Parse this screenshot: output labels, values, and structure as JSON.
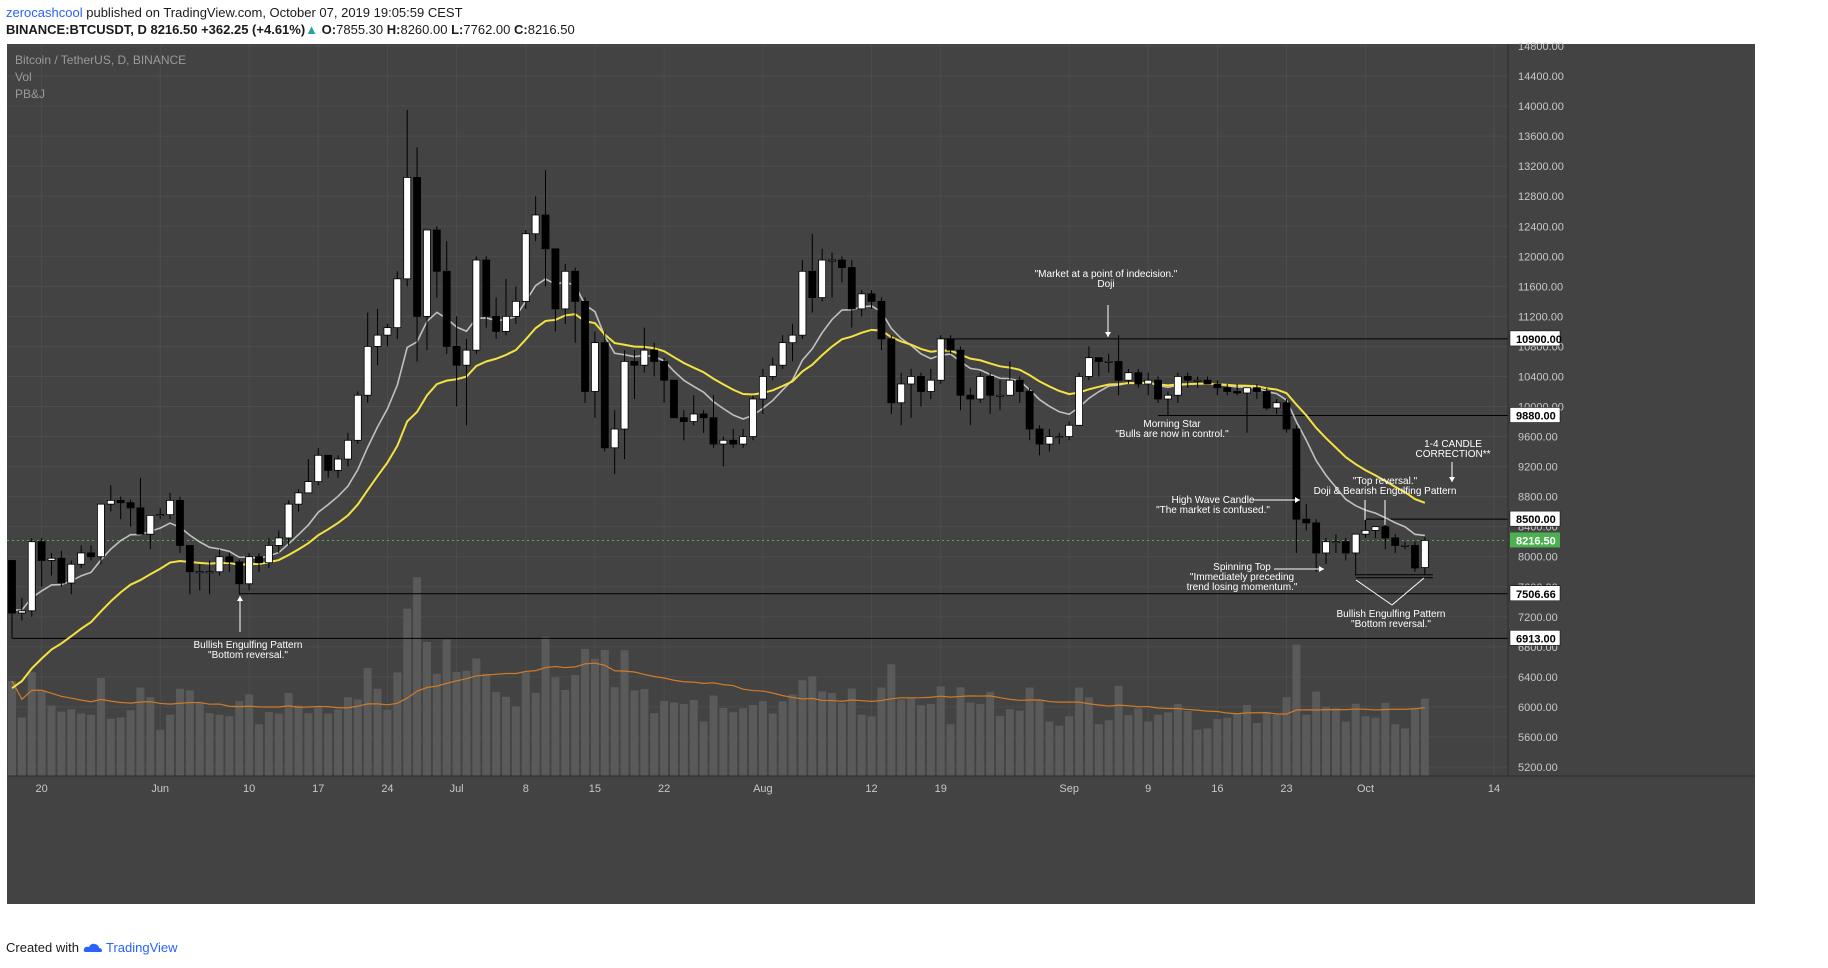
{
  "header": {
    "author": "zerocashcool",
    "published_text": "published on TradingView.com, October 07, 2019 19:05:59 CEST",
    "symbol": "BINANCE:BTCUSDT, D",
    "last": "8216.50",
    "change": "+362.25 (+4.61%)",
    "open": "7855.30",
    "high": "8260.00",
    "low": "7762.00",
    "close": "8216.50",
    "o_label": "O:",
    "h_label": "H:",
    "l_label": "L:",
    "c_label": "C:"
  },
  "footer": {
    "created_with": "Created with",
    "brand": "TradingView"
  },
  "colors": {
    "background": "#434343",
    "grid": "#4d4d4d",
    "candle_up": "#ffffff",
    "candle_down": "#000000",
    "ema_fast": "#c0c0c0",
    "ema_slow": "#f4e242",
    "volume": "#5a5a5a",
    "volume_ma": "#d17a2b",
    "last_price": "#4caf50"
  },
  "chart_data": {
    "type": "candlestick",
    "title": "Bitcoin / TetherUS, D, BINANCE",
    "indicators": [
      "Vol",
      "PB&J"
    ],
    "grid": true,
    "ylim": [
      5200,
      14800
    ],
    "y_ticks": [
      "14800.00",
      "14400.00",
      "14000.00",
      "13600.00",
      "13200.00",
      "12800.00",
      "12400.00",
      "12000.00",
      "11600.00",
      "11200.00",
      "10800.00",
      "10400.00",
      "10000.00",
      "9600.00",
      "9200.00",
      "8800.00",
      "8400.00",
      "8000.00",
      "7600.00",
      "7200.00",
      "6800.00",
      "6400.00",
      "6000.00",
      "5600.00",
      "5200.00"
    ],
    "x_ticks": [
      {
        "label": "20",
        "date": "2019-05-20"
      },
      {
        "label": "Jun",
        "date": "2019-06-01"
      },
      {
        "label": "10",
        "date": "2019-06-10"
      },
      {
        "label": "17",
        "date": "2019-06-17"
      },
      {
        "label": "24",
        "date": "2019-06-24"
      },
      {
        "label": "Jul",
        "date": "2019-07-01"
      },
      {
        "label": "8",
        "date": "2019-07-08"
      },
      {
        "label": "15",
        "date": "2019-07-15"
      },
      {
        "label": "22",
        "date": "2019-07-22"
      },
      {
        "label": "Aug",
        "date": "2019-08-01"
      },
      {
        "label": "12",
        "date": "2019-08-12"
      },
      {
        "label": "19",
        "date": "2019-08-19"
      },
      {
        "label": "Sep",
        "date": "2019-09-01"
      },
      {
        "label": "9",
        "date": "2019-09-09"
      },
      {
        "label": "16",
        "date": "2019-09-16"
      },
      {
        "label": "23",
        "date": "2019-09-23"
      },
      {
        "label": "Oct",
        "date": "2019-10-01"
      },
      {
        "label": "14",
        "date": "2019-10-14"
      }
    ],
    "first_date": "2019-05-17",
    "price_labels": [
      {
        "value": 10900,
        "text": "10900.00"
      },
      {
        "value": 9880,
        "text": "9880.00"
      },
      {
        "value": 8500,
        "text": "8500.00"
      },
      {
        "value": 7506.66,
        "text": "7506.66"
      },
      {
        "value": 6913,
        "text": "6913.00"
      }
    ],
    "last_price": {
      "value": 8216.5,
      "text": "8216.50"
    },
    "horizontal_lines": [
      {
        "value": 10900,
        "from": "2019-08-19"
      },
      {
        "value": 9880,
        "from": "2019-09-10"
      },
      {
        "value": 8500,
        "from": "2019-10-01"
      },
      {
        "value": 7506.66,
        "from": "2019-06-09"
      },
      {
        "value": 6913,
        "from": "2019-05-17"
      },
      {
        "value": 7760,
        "from": "2019-09-30",
        "to": "2019-10-07"
      },
      {
        "value": 7720,
        "from": "2019-09-30",
        "to": "2019-10-07"
      }
    ],
    "candles": [
      [
        "2019-05-17",
        7950,
        7950,
        6913,
        7250
      ],
      [
        "2019-05-18",
        7250,
        7450,
        7150,
        7280
      ],
      [
        "2019-05-19",
        7280,
        8250,
        7200,
        8200
      ],
      [
        "2019-05-20",
        8200,
        8250,
        7600,
        7950
      ],
      [
        "2019-05-21",
        7950,
        8050,
        7750,
        7980
      ],
      [
        "2019-05-22",
        7980,
        8080,
        7600,
        7650
      ],
      [
        "2019-05-23",
        7650,
        7950,
        7500,
        7900
      ],
      [
        "2019-05-24",
        7900,
        8150,
        7850,
        8050
      ],
      [
        "2019-05-25",
        8050,
        8150,
        7950,
        8000
      ],
      [
        "2019-05-26",
        8000,
        8700,
        7900,
        8700
      ],
      [
        "2019-05-27",
        8700,
        8950,
        8600,
        8750
      ],
      [
        "2019-05-28",
        8750,
        8800,
        8500,
        8720
      ],
      [
        "2019-05-29",
        8720,
        8760,
        8400,
        8650
      ],
      [
        "2019-05-30",
        8650,
        9050,
        8350,
        8300
      ],
      [
        "2019-05-31",
        8300,
        8550,
        8100,
        8550
      ],
      [
        "2019-06-01",
        8550,
        8650,
        8500,
        8560
      ],
      [
        "2019-06-02",
        8560,
        8850,
        8500,
        8750
      ],
      [
        "2019-06-03",
        8750,
        8800,
        8050,
        8150
      ],
      [
        "2019-06-04",
        8150,
        8150,
        7500,
        7800
      ],
      [
        "2019-06-05",
        7800,
        7900,
        7550,
        7800
      ],
      [
        "2019-06-06",
        7800,
        7950,
        7500,
        7800
      ],
      [
        "2019-06-07",
        7800,
        8100,
        7750,
        8000
      ],
      [
        "2019-06-08",
        8000,
        8050,
        7800,
        7930
      ],
      [
        "2019-06-09",
        7930,
        7960,
        7506.66,
        7640
      ],
      [
        "2019-06-10",
        7640,
        8050,
        7550,
        8000
      ],
      [
        "2019-06-11",
        8000,
        8050,
        7800,
        7920
      ],
      [
        "2019-06-12",
        7920,
        8250,
        7850,
        8150
      ],
      [
        "2019-06-13",
        8150,
        8350,
        8050,
        8250
      ],
      [
        "2019-06-14",
        8250,
        8750,
        8150,
        8700
      ],
      [
        "2019-06-15",
        8700,
        8900,
        8600,
        8850
      ],
      [
        "2019-06-16",
        8850,
        9300,
        8850,
        9000
      ],
      [
        "2019-06-17",
        9000,
        9450,
        8950,
        9350
      ],
      [
        "2019-06-18",
        9350,
        9350,
        9050,
        9150
      ],
      [
        "2019-06-19",
        9150,
        9350,
        9050,
        9300
      ],
      [
        "2019-06-20",
        9300,
        9650,
        9200,
        9550
      ],
      [
        "2019-06-21",
        9550,
        10200,
        9500,
        10150
      ],
      [
        "2019-06-22",
        10150,
        11250,
        10050,
        10800
      ],
      [
        "2019-06-23",
        10800,
        11300,
        10550,
        10950
      ],
      [
        "2019-06-24",
        10950,
        11100,
        10800,
        11050
      ],
      [
        "2019-06-25",
        11050,
        11800,
        10900,
        11700
      ],
      [
        "2019-06-26",
        11700,
        13950,
        11600,
        13050
      ],
      [
        "2019-06-27",
        13050,
        13450,
        10600,
        11200
      ],
      [
        "2019-06-28",
        11200,
        12350,
        10750,
        12350
      ],
      [
        "2019-06-29",
        12350,
        12400,
        11450,
        11800
      ],
      [
        "2019-06-30",
        11800,
        12200,
        10700,
        10800
      ],
      [
        "2019-07-01",
        10800,
        11200,
        10000,
        10550
      ],
      [
        "2019-07-02",
        10550,
        10900,
        9750,
        10750
      ],
      [
        "2019-07-03",
        10750,
        12000,
        10700,
        11950
      ],
      [
        "2019-07-04",
        11950,
        12000,
        11050,
        11200
      ],
      [
        "2019-07-05",
        11200,
        11450,
        10900,
        11000
      ],
      [
        "2019-07-06",
        11000,
        11700,
        10950,
        11200
      ],
      [
        "2019-07-07",
        11200,
        11600,
        11100,
        11400
      ],
      [
        "2019-07-08",
        11400,
        12350,
        11300,
        12300
      ],
      [
        "2019-07-09",
        12300,
        12800,
        12200,
        12550
      ],
      [
        "2019-07-10",
        12550,
        13150,
        11600,
        12100
      ],
      [
        "2019-07-11",
        12100,
        12100,
        11000,
        11300
      ],
      [
        "2019-07-12",
        11300,
        11900,
        11100,
        11800
      ],
      [
        "2019-07-13",
        11800,
        11850,
        10850,
        11400
      ],
      [
        "2019-07-14",
        11400,
        11450,
        10050,
        10200
      ],
      [
        "2019-07-15",
        10200,
        11000,
        9850,
        10850
      ],
      [
        "2019-07-16",
        10850,
        11000,
        9400,
        9450
      ],
      [
        "2019-07-17",
        9450,
        9950,
        9100,
        9700
      ],
      [
        "2019-07-18",
        9700,
        10750,
        9300,
        10600
      ],
      [
        "2019-07-19",
        10600,
        10750,
        10100,
        10550
      ],
      [
        "2019-07-20",
        10550,
        11050,
        10450,
        10750
      ],
      [
        "2019-07-21",
        10750,
        10850,
        10400,
        10600
      ],
      [
        "2019-07-22",
        10600,
        10650,
        10050,
        10350
      ],
      [
        "2019-07-23",
        10350,
        10350,
        9850,
        9850
      ],
      [
        "2019-07-24",
        9850,
        9950,
        9550,
        9800
      ],
      [
        "2019-07-25",
        9800,
        10150,
        9750,
        9900
      ],
      [
        "2019-07-26",
        9900,
        9950,
        9650,
        9850
      ],
      [
        "2019-07-27",
        9850,
        10150,
        9450,
        9500
      ],
      [
        "2019-07-28",
        9500,
        9600,
        9200,
        9550
      ],
      [
        "2019-07-29",
        9550,
        9700,
        9450,
        9500
      ],
      [
        "2019-07-30",
        9500,
        9700,
        9450,
        9600
      ],
      [
        "2019-07-31",
        9600,
        10150,
        9550,
        10100
      ],
      [
        "2019-08-01",
        10100,
        10500,
        9900,
        10400
      ],
      [
        "2019-08-02",
        10400,
        10650,
        10350,
        10550
      ],
      [
        "2019-08-03",
        10550,
        10950,
        10500,
        10850
      ],
      [
        "2019-08-04",
        10850,
        11100,
        10600,
        10950
      ],
      [
        "2019-08-05",
        10950,
        11950,
        10900,
        11800
      ],
      [
        "2019-08-06",
        11800,
        12300,
        11250,
        11450
      ],
      [
        "2019-08-07",
        11450,
        12100,
        11400,
        11950
      ],
      [
        "2019-08-08",
        11950,
        12050,
        11450,
        11950
      ],
      [
        "2019-08-09",
        11950,
        12000,
        11650,
        11850
      ],
      [
        "2019-08-10",
        11850,
        11950,
        11050,
        11300
      ],
      [
        "2019-08-11",
        11300,
        11550,
        11200,
        11500
      ],
      [
        "2019-08-12",
        11500,
        11550,
        11300,
        11400
      ],
      [
        "2019-08-13",
        11400,
        11450,
        10750,
        10900
      ],
      [
        "2019-08-14",
        10900,
        10950,
        9900,
        10050
      ],
      [
        "2019-08-15",
        10050,
        10450,
        9750,
        10300
      ],
      [
        "2019-08-16",
        10300,
        10500,
        9850,
        10400
      ],
      [
        "2019-08-17",
        10400,
        10450,
        10000,
        10200
      ],
      [
        "2019-08-18",
        10200,
        10500,
        10100,
        10350
      ],
      [
        "2019-08-19",
        10350,
        10950,
        10300,
        10900
      ],
      [
        "2019-08-20",
        10900,
        10950,
        10700,
        10750
      ],
      [
        "2019-08-21",
        10750,
        10800,
        9950,
        10150
      ],
      [
        "2019-08-22",
        10150,
        10250,
        9750,
        10100
      ],
      [
        "2019-08-23",
        10100,
        10450,
        10050,
        10400
      ],
      [
        "2019-08-24",
        10400,
        10450,
        9900,
        10150
      ],
      [
        "2019-08-25",
        10150,
        10350,
        9950,
        10150
      ],
      [
        "2019-08-26",
        10150,
        10600,
        10150,
        10350
      ],
      [
        "2019-08-27",
        10350,
        10400,
        10050,
        10200
      ],
      [
        "2019-08-28",
        10200,
        10250,
        9550,
        9700
      ],
      [
        "2019-08-29",
        9700,
        9750,
        9350,
        9500
      ],
      [
        "2019-08-30",
        9500,
        9700,
        9400,
        9600
      ],
      [
        "2019-08-31",
        9600,
        9650,
        9500,
        9600
      ],
      [
        "2019-09-01",
        9600,
        9800,
        9550,
        9750
      ],
      [
        "2019-09-02",
        9750,
        10450,
        9750,
        10400
      ],
      [
        "2019-09-03",
        10400,
        10800,
        10350,
        10650
      ],
      [
        "2019-09-04",
        10650,
        10650,
        10400,
        10600
      ],
      [
        "2019-09-05",
        10600,
        10700,
        10450,
        10600
      ],
      [
        "2019-09-06",
        10600,
        10950,
        10150,
        10350
      ],
      [
        "2019-09-07",
        10350,
        10500,
        10300,
        10450
      ],
      [
        "2019-09-08",
        10450,
        10500,
        10250,
        10300
      ],
      [
        "2019-09-09",
        10300,
        10450,
        10150,
        10350
      ],
      [
        "2019-09-10",
        10350,
        10400,
        10050,
        10100
      ],
      [
        "2019-09-11",
        10100,
        10200,
        9880,
        10150
      ],
      [
        "2019-09-12",
        10150,
        10450,
        10050,
        10400
      ],
      [
        "2019-09-13",
        10400,
        10450,
        10250,
        10350
      ],
      [
        "2019-09-14",
        10350,
        10400,
        10250,
        10350
      ],
      [
        "2019-09-15",
        10350,
        10400,
        10300,
        10300
      ],
      [
        "2019-09-16",
        10300,
        10350,
        10150,
        10250
      ],
      [
        "2019-09-17",
        10250,
        10300,
        10150,
        10200
      ],
      [
        "2019-09-18",
        10200,
        10300,
        10150,
        10180
      ],
      [
        "2019-09-19",
        10180,
        10250,
        9650,
        10250
      ],
      [
        "2019-09-20",
        10250,
        10300,
        10100,
        10200
      ],
      [
        "2019-09-21",
        10200,
        10250,
        9950,
        9980
      ],
      [
        "2019-09-22",
        9980,
        10100,
        9900,
        10050
      ],
      [
        "2019-09-23",
        10050,
        10100,
        9650,
        9700
      ],
      [
        "2019-09-24",
        9700,
        9750,
        8050,
        8500
      ],
      [
        "2019-09-25",
        8500,
        8700,
        8350,
        8450
      ],
      [
        "2019-09-26",
        8450,
        8500,
        7800,
        8050
      ],
      [
        "2019-09-27",
        8050,
        8250,
        7900,
        8200
      ],
      [
        "2019-09-28",
        8200,
        8300,
        8050,
        8200
      ],
      [
        "2019-09-29",
        8200,
        8250,
        7950,
        8050
      ],
      [
        "2019-09-30",
        8050,
        8300,
        7750,
        8300
      ],
      [
        "2019-10-01",
        8300,
        8500,
        8250,
        8350
      ],
      [
        "2019-10-02",
        8350,
        8400,
        8250,
        8400
      ],
      [
        "2019-10-03",
        8400,
        8450,
        8100,
        8250
      ],
      [
        "2019-10-04",
        8250,
        8300,
        8050,
        8150
      ],
      [
        "2019-10-05",
        8150,
        8200,
        8100,
        8150
      ],
      [
        "2019-10-06",
        8150,
        8200,
        7800,
        7850
      ],
      [
        "2019-10-07",
        7855.3,
        8260,
        7762,
        8216.5
      ]
    ]
  },
  "annotations": [
    {
      "id": "bullish-engulfing-1",
      "lines": [
        "Bullish Engulfing Pattern",
        "\"Bottom reversal.\""
      ],
      "date": "2019-06-09"
    },
    {
      "id": "doji",
      "lines": [
        "\"Market at a point of indecision.\"",
        "Doji"
      ],
      "date": "2019-09-05"
    },
    {
      "id": "morning-star",
      "lines": [
        "Morning Star",
        "\"Bulls are now in control.\""
      ],
      "date": "2019-09-12"
    },
    {
      "id": "high-wave",
      "lines": [
        "High Wave Candle",
        "\"The market is confused.\""
      ],
      "date": "2019-09-24"
    },
    {
      "id": "spinning-top",
      "lines": [
        "Spinning Top",
        "\"Immediately preceding",
        "trend losing momentum.\""
      ],
      "date": "2019-09-26"
    },
    {
      "id": "doji-bearish",
      "lines": [
        "\"Top reversal.\"",
        "Doji & Bearish Engulfing Pattern"
      ],
      "date": "2019-10-02"
    },
    {
      "id": "bullish-engulfing-2",
      "lines": [
        "Bullish Engulfing Pattern",
        "\"Bottom reversal.\""
      ],
      "date": "2019-10-06"
    },
    {
      "id": "correction",
      "lines": [
        "1-4 CANDLE",
        "CORRECTION**"
      ],
      "date": "2019-10-07"
    }
  ]
}
